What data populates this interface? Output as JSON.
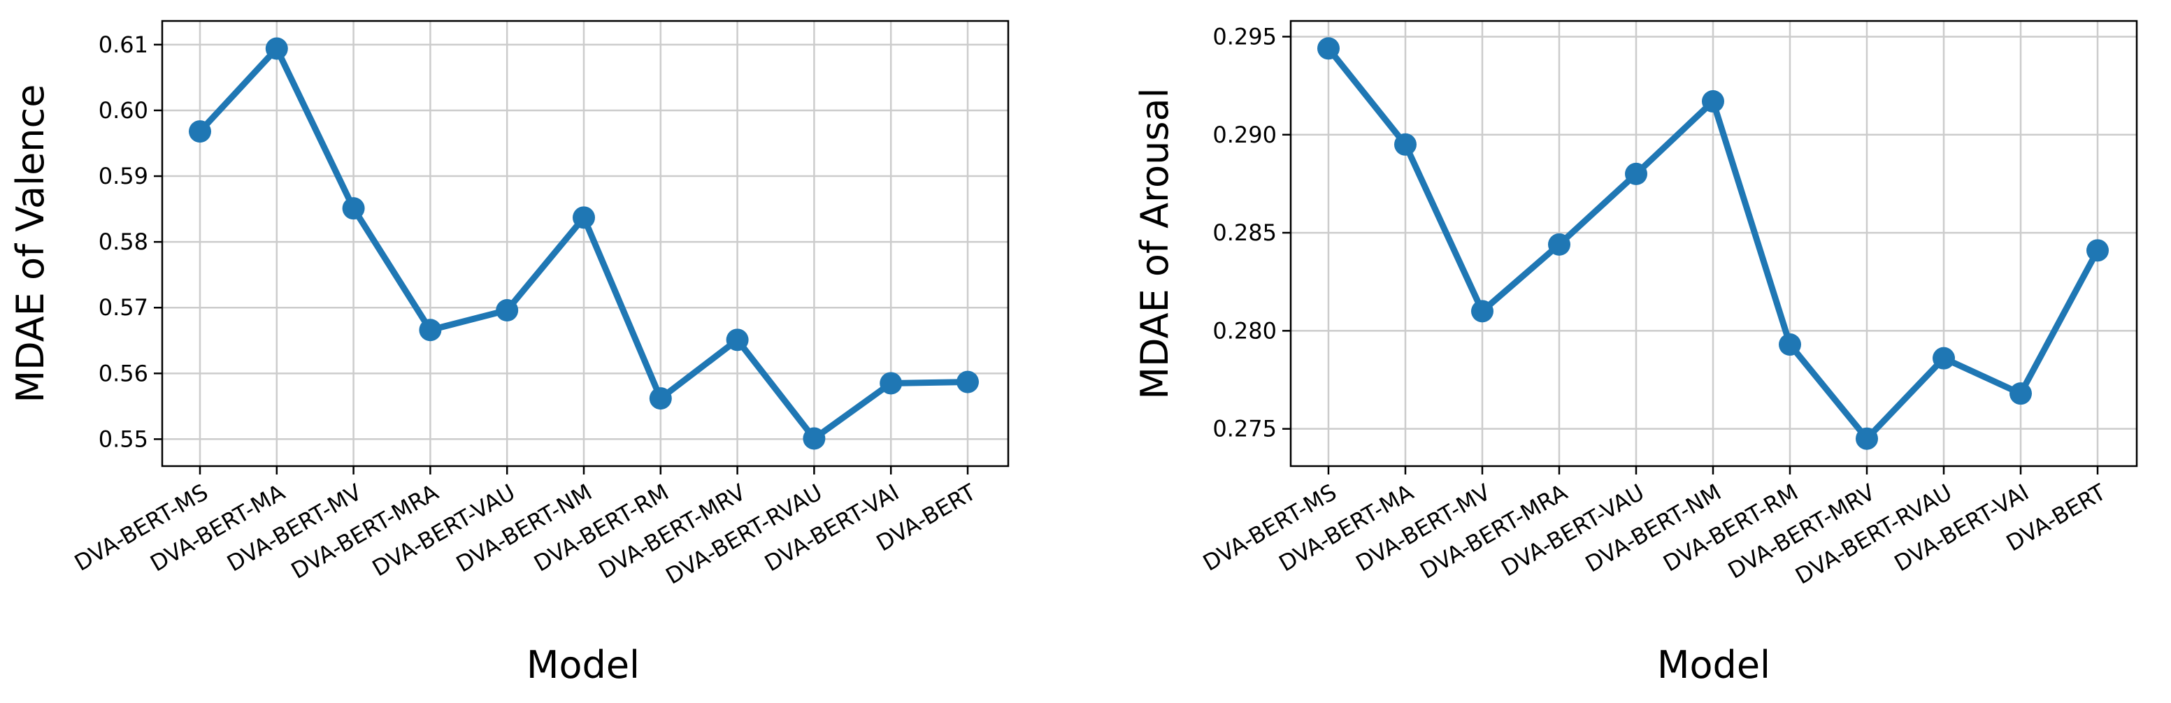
{
  "chart_data": [
    {
      "type": "line",
      "xlabel": "Model",
      "ylabel": "MDAE of Valence",
      "categories": [
        "DVA-BERT-MS",
        "DVA-BERT-MA",
        "DVA-BERT-MV",
        "DVA-BERT-MRA",
        "DVA-BERT-VAU",
        "DVA-BERT-NM",
        "DVA-BERT-RM",
        "DVA-BERT-MRV",
        "DVA-BERT-RVAU",
        "DVA-BERT-VAI",
        "DVA-BERT"
      ],
      "values": [
        0.5968,
        0.6094,
        0.5851,
        0.5666,
        0.5696,
        0.5837,
        0.5562,
        0.5651,
        0.5501,
        0.5585,
        0.5587
      ],
      "ylim": [
        0.5459,
        0.6136
      ],
      "yticks": [
        "0.55",
        "0.56",
        "0.57",
        "0.58",
        "0.59",
        "0.60",
        "0.61"
      ],
      "ytick_values": [
        0.55,
        0.56,
        0.57,
        0.58,
        0.59,
        0.6,
        0.61
      ],
      "grid": true,
      "line_color": "#1f77b4"
    },
    {
      "type": "line",
      "xlabel": "Model",
      "ylabel": "MDAE of Arousal",
      "categories": [
        "DVA-BERT-MS",
        "DVA-BERT-MA",
        "DVA-BERT-MV",
        "DVA-BERT-MRA",
        "DVA-BERT-VAU",
        "DVA-BERT-NM",
        "DVA-BERT-RM",
        "DVA-BERT-MRV",
        "DVA-BERT-RVAU",
        "DVA-BERT-VAI",
        "DVA-BERT"
      ],
      "values": [
        0.2944,
        0.2895,
        0.281,
        0.2844,
        0.288,
        0.2917,
        0.2793,
        0.2745,
        0.2786,
        0.2768,
        0.2841
      ],
      "ylim": [
        0.2731,
        0.2958
      ],
      "yticks": [
        "0.275",
        "0.280",
        "0.285",
        "0.290",
        "0.295"
      ],
      "ytick_values": [
        0.275,
        0.28,
        0.285,
        0.29,
        0.295
      ],
      "grid": true,
      "line_color": "#1f77b4"
    }
  ]
}
